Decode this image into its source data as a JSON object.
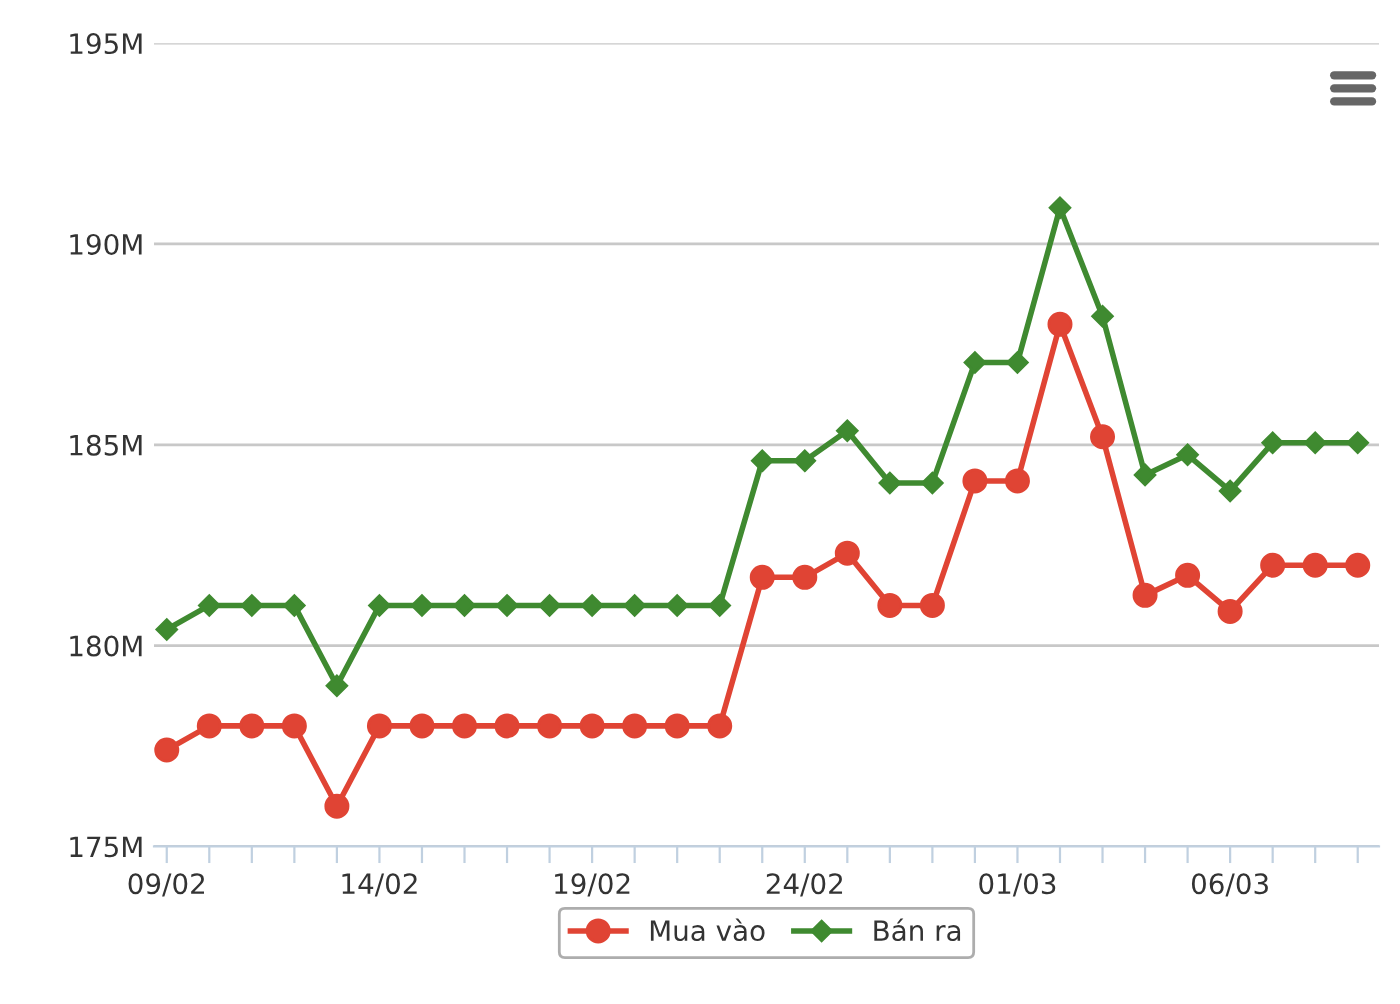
{
  "chart_data": {
    "type": "line",
    "categories": [
      "09/02",
      null,
      null,
      null,
      null,
      "14/02",
      null,
      null,
      null,
      null,
      "19/02",
      null,
      null,
      null,
      null,
      "24/02",
      null,
      null,
      null,
      null,
      "01/03",
      null,
      null,
      null,
      null,
      "06/03",
      null,
      null,
      null
    ],
    "series": [
      {
        "name": "Mua vào",
        "color": "#e04434",
        "marker": "circle",
        "values": [
          177.4,
          178,
          178,
          178,
          176,
          178,
          178,
          178,
          178,
          178,
          178,
          178,
          178,
          178,
          181.7,
          181.7,
          182.3,
          181,
          181,
          184.1,
          184.1,
          188,
          185.2,
          181.25,
          181.75,
          180.85,
          182,
          182,
          182
        ]
      },
      {
        "name": "Bán ra",
        "color": "#3f8a30",
        "marker": "diamond",
        "values": [
          180.4,
          181,
          181,
          181,
          179,
          181,
          181,
          181,
          181,
          181,
          181,
          181,
          181,
          181,
          184.6,
          184.6,
          185.35,
          184.05,
          184.05,
          187.05,
          187.05,
          190.9,
          188.2,
          184.25,
          184.75,
          183.85,
          185.05,
          185.05,
          185.05
        ]
      }
    ],
    "ylim": [
      175,
      195
    ],
    "yticks": [
      {
        "value": 175,
        "label": "175M"
      },
      {
        "value": 180,
        "label": "180M"
      },
      {
        "value": 185,
        "label": "185M"
      },
      {
        "value": 190,
        "label": "190M"
      },
      {
        "value": 195,
        "label": "195M"
      }
    ],
    "grid": "y",
    "legend": "bottom",
    "line_style": "solid"
  }
}
